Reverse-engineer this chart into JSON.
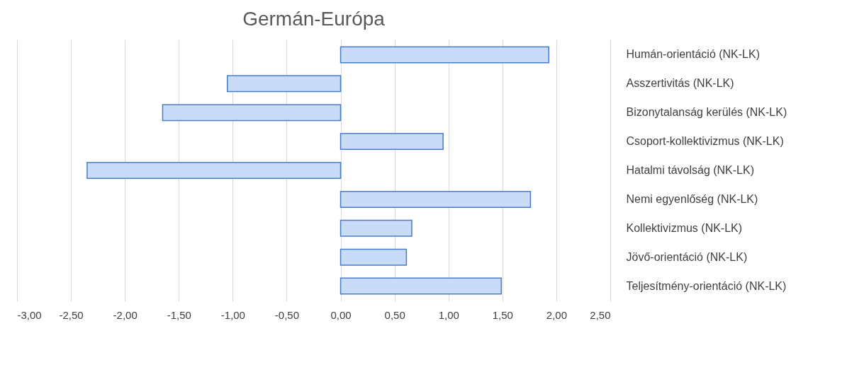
{
  "chart_data": {
    "type": "bar",
    "orientation": "horizontal",
    "title": "Germán-Európa",
    "categories": [
      "Humán-orientáció (NK-LK)",
      "Asszertivitás (NK-LK)",
      "Bizonytalanság kerülés (NK-LK)",
      "Csoport-kollektivizmus (NK-LK)",
      "Hatalmi távolság (NK-LK)",
      "Nemi egyenlőség (NK-LK)",
      "Kollektivizmus (NK-LK)",
      "Jövő-orientáció (NK-LK)",
      "Teljesítmény-orientáció (NK-LK)"
    ],
    "values": [
      1.93,
      -1.05,
      -1.65,
      0.95,
      -2.35,
      1.76,
      0.66,
      0.61,
      1.49
    ],
    "color": "#c9dcf7",
    "xlim": [
      -3,
      2.5
    ],
    "xticks": [
      {
        "value": -3,
        "label": "-3,00"
      },
      {
        "value": -2.5,
        "label": "-2,50"
      },
      {
        "value": -2,
        "label": "-2,00"
      },
      {
        "value": -1.5,
        "label": "-1,50"
      },
      {
        "value": -1,
        "label": "-1,00"
      },
      {
        "value": -0.5,
        "label": "-0,50"
      },
      {
        "value": 0,
        "label": "0,00"
      },
      {
        "value": 0.5,
        "label": "0,50"
      },
      {
        "value": 1,
        "label": "1,00"
      },
      {
        "value": 1.5,
        "label": "1,50"
      },
      {
        "value": 2,
        "label": "2,00"
      },
      {
        "value": 2.5,
        "label": "2,50"
      }
    ],
    "grid": "x"
  }
}
